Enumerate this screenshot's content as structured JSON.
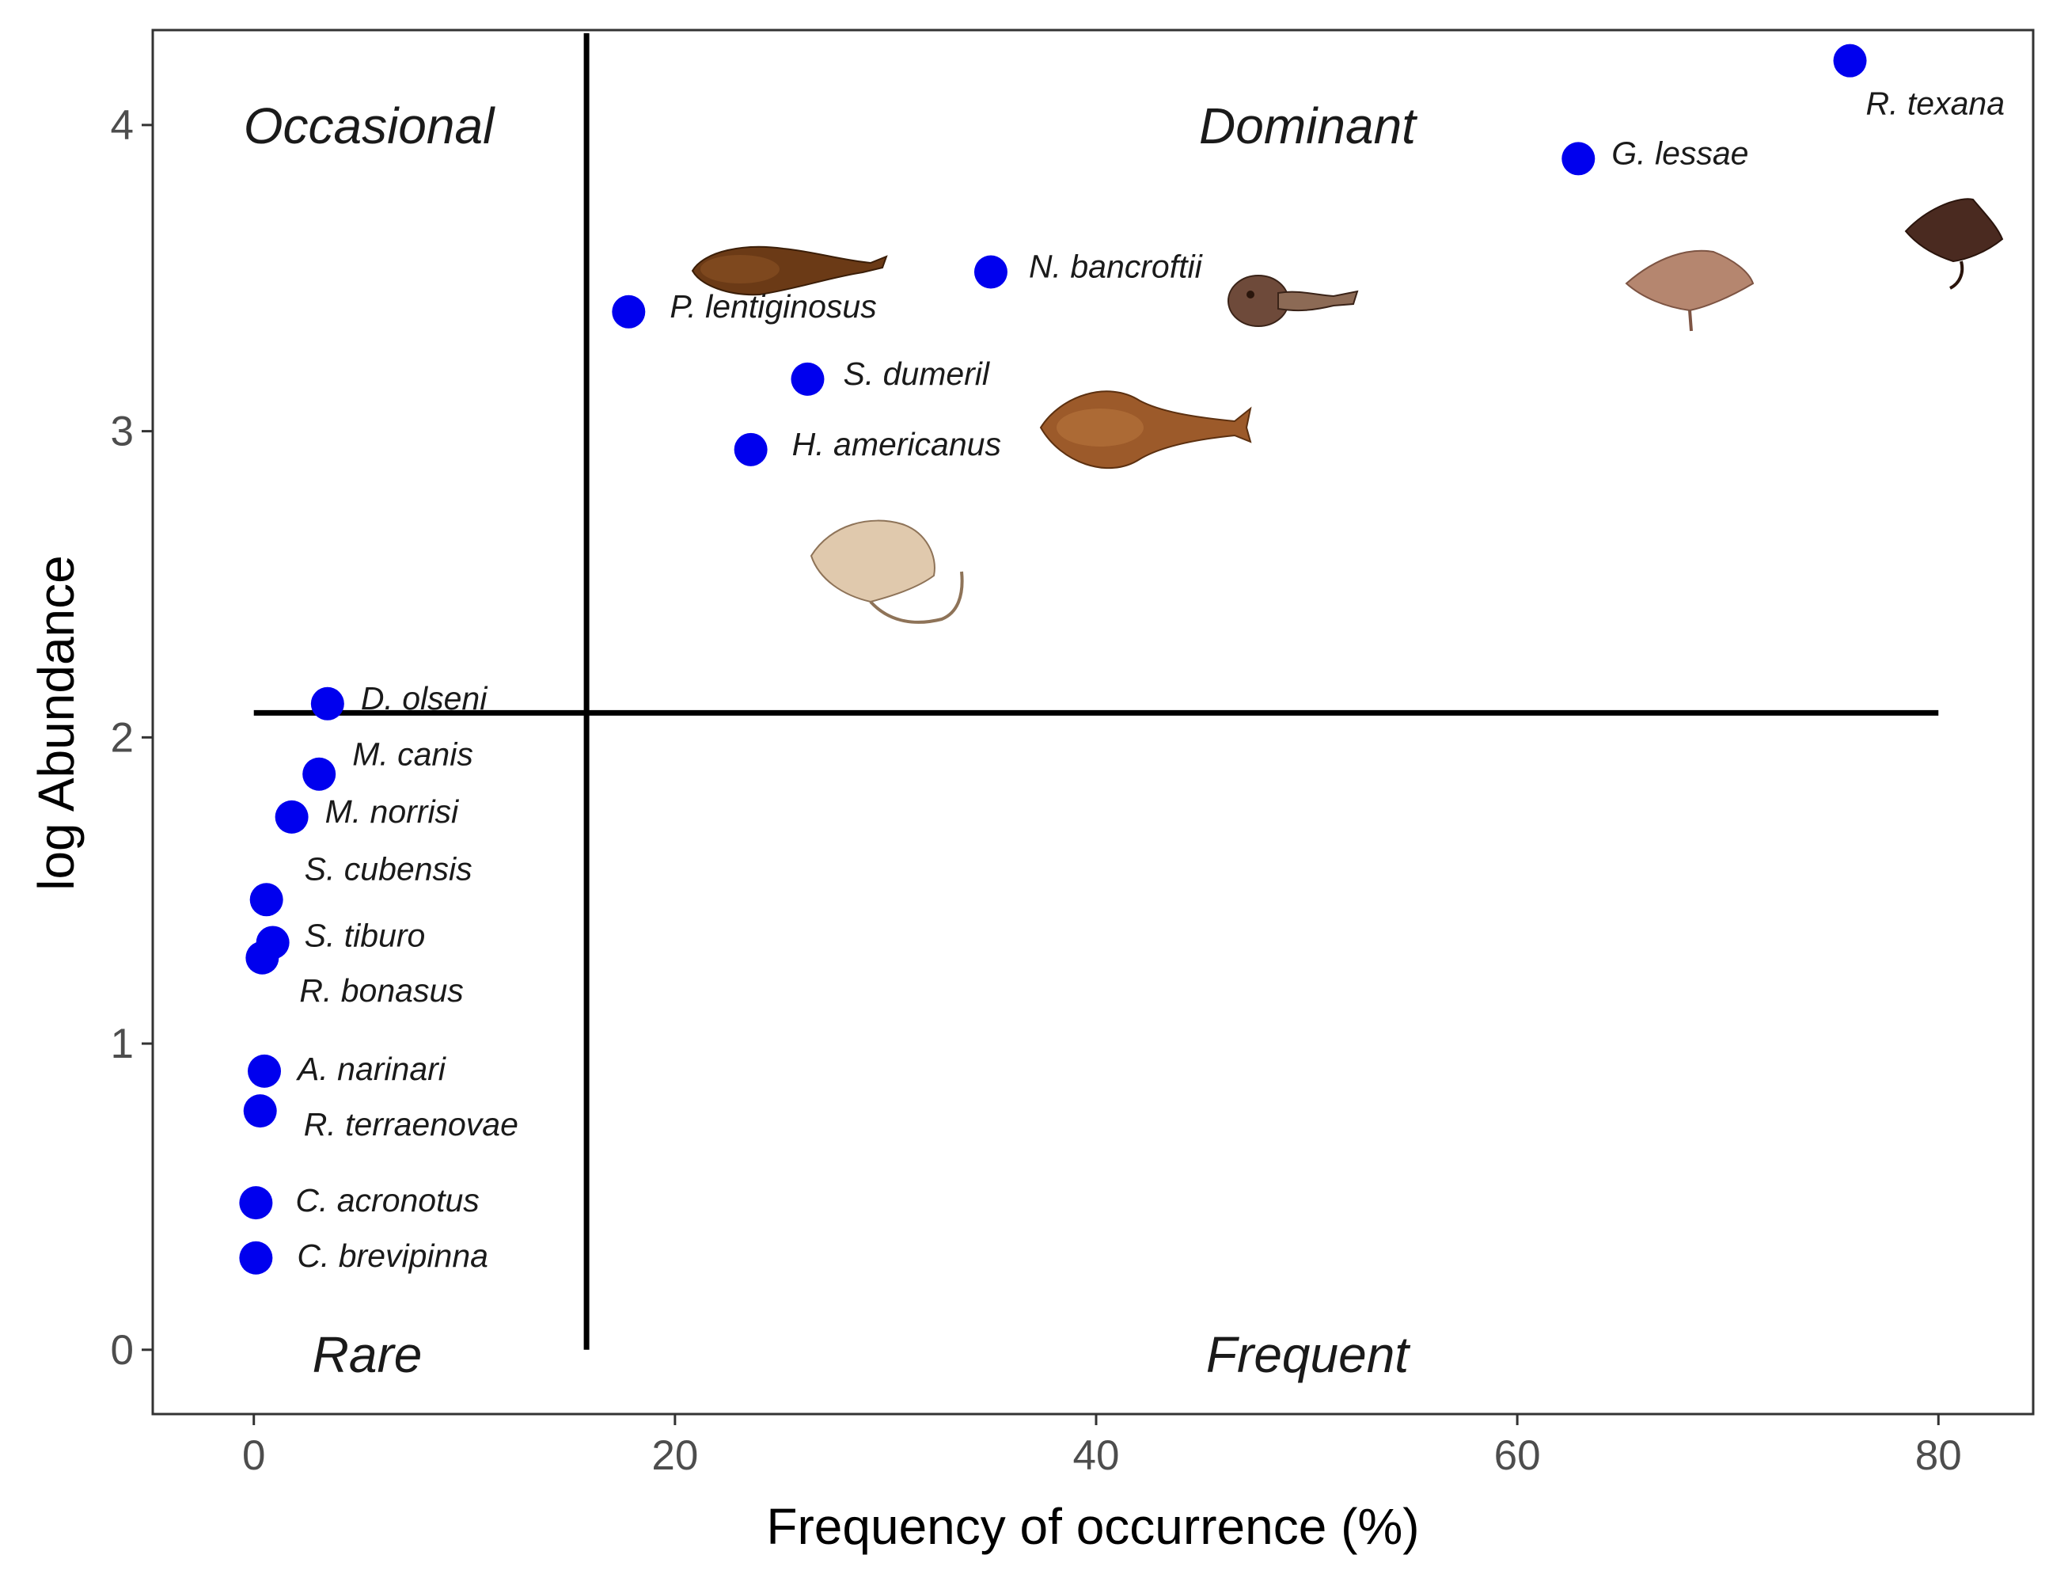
{
  "chart_data": {
    "type": "scatter",
    "title": "",
    "xlabel": "Frequency of occurrence  (%)",
    "ylabel": "log Abundance",
    "xlim": [
      -4.8,
      84.5
    ],
    "ylim": [
      -0.21,
      4.31
    ],
    "x_ticks": [
      {
        "value": 0,
        "label": "0"
      },
      {
        "value": 20,
        "label": "20"
      },
      {
        "value": 40,
        "label": "40"
      },
      {
        "value": 60,
        "label": "60"
      },
      {
        "value": 80,
        "label": "80"
      }
    ],
    "y_ticks": [
      {
        "value": 0,
        "label": "0"
      },
      {
        "value": 1,
        "label": "1"
      },
      {
        "value": 2,
        "label": "2"
      },
      {
        "value": 3,
        "label": "3"
      },
      {
        "value": 4,
        "label": "4"
      }
    ],
    "point_color": "#0000ee",
    "reference_lines": {
      "vertical": {
        "x": 15.8,
        "y_from": 0,
        "y_to": 4.3
      },
      "horizontal": {
        "y": 2.08,
        "x_from": 0,
        "x_to": 80
      }
    },
    "quadrants": [
      {
        "name": "Occasional",
        "position": "top-left"
      },
      {
        "name": "Dominant",
        "position": "top-right"
      },
      {
        "name": "Rare",
        "position": "bottom-left"
      },
      {
        "name": "Frequent",
        "position": "bottom-right"
      }
    ],
    "points": [
      {
        "species": "R. texana",
        "x": 75.8,
        "y": 4.21
      },
      {
        "species": "G. lessae",
        "x": 62.9,
        "y": 3.89
      },
      {
        "species": "N. bancroftii",
        "x": 35.0,
        "y": 3.52
      },
      {
        "species": "P. lentiginosus",
        "x": 17.8,
        "y": 3.39
      },
      {
        "species": "S. dumeril",
        "x": 26.3,
        "y": 3.17
      },
      {
        "species": "H. americanus",
        "x": 23.6,
        "y": 2.94
      },
      {
        "species": "D. olseni",
        "x": 3.5,
        "y": 2.11
      },
      {
        "species": "M. canis",
        "x": 3.1,
        "y": 1.88
      },
      {
        "species": "M. norrisi",
        "x": 1.8,
        "y": 1.74
      },
      {
        "species": "S. cubensis",
        "x": 0.6,
        "y": 1.47
      },
      {
        "species": "S. tiburo",
        "x": 0.9,
        "y": 1.33
      },
      {
        "species": "R. bonasus",
        "x": 0.4,
        "y": 1.28
      },
      {
        "species": "A. narinari",
        "x": 0.5,
        "y": 0.91
      },
      {
        "species": "R. terraenovae",
        "x": 0.3,
        "y": 0.78
      },
      {
        "species": "C. acronotus",
        "x": 0.1,
        "y": 0.48
      },
      {
        "species": "C. brevipinna",
        "x": 0.1,
        "y": 0.3
      }
    ],
    "illustrations": [
      {
        "name": "sawfish-like-guitarfish-illustration",
        "near": "P. lentiginosus"
      },
      {
        "name": "electric-ray-illustration",
        "near": "N. bancroftii"
      },
      {
        "name": "guitarfish-illustration",
        "near": "S. dumeril"
      },
      {
        "name": "stingray-illustration",
        "near": "H. americanus"
      },
      {
        "name": "skate-illustration",
        "near": "G. lessae"
      },
      {
        "name": "roundel-skate-illustration",
        "near": "R. texana"
      }
    ]
  }
}
